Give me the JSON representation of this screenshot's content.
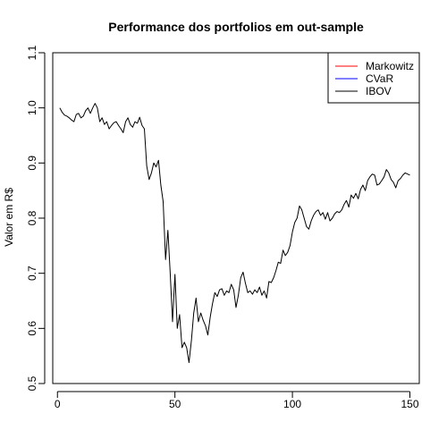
{
  "chart_data": {
    "type": "line",
    "title": "Performance dos portfolios em out-sample",
    "xlabel": "",
    "ylabel": "Valor em R$",
    "xlim": [
      -2,
      154
    ],
    "ylim": [
      0.5,
      1.1
    ],
    "x_ticks": [
      0,
      50,
      100,
      150
    ],
    "y_ticks": [
      0.5,
      0.6,
      0.7,
      0.8,
      0.9,
      1.0,
      1.1
    ],
    "x_tick_labels": [
      "0",
      "50",
      "100",
      "150"
    ],
    "y_tick_labels": [
      "0.5",
      "0.6",
      "0.7",
      "0.8",
      "0.9",
      "1.0",
      "1.1"
    ],
    "grid": false,
    "legend_position": "top-right",
    "legend": [
      {
        "name": "Markowitz",
        "color": "#ff0000"
      },
      {
        "name": "CVaR",
        "color": "#0000ff"
      },
      {
        "name": "IBOV",
        "color": "#000000"
      }
    ],
    "series": [
      {
        "name": "IBOV",
        "color": "#000000",
        "x": [
          1,
          2,
          3,
          4,
          5,
          6,
          7,
          8,
          9,
          10,
          11,
          12,
          13,
          14,
          15,
          16,
          17,
          18,
          19,
          20,
          21,
          22,
          23,
          24,
          25,
          26,
          27,
          28,
          29,
          30,
          31,
          32,
          33,
          34,
          35,
          36,
          37,
          38,
          39,
          40,
          41,
          42,
          43,
          44,
          45,
          46,
          47,
          48,
          49,
          50,
          51,
          52,
          53,
          54,
          55,
          56,
          57,
          58,
          59,
          60,
          61,
          62,
          63,
          64,
          65,
          66,
          67,
          68,
          69,
          70,
          71,
          72,
          73,
          74,
          75,
          76,
          77,
          78,
          79,
          80,
          81,
          82,
          83,
          84,
          85,
          86,
          87,
          88,
          89,
          90,
          91,
          92,
          93,
          94,
          95,
          96,
          97,
          98,
          99,
          100,
          101,
          102,
          103,
          104,
          105,
          106,
          107,
          108,
          109,
          110,
          111,
          112,
          113,
          114,
          115,
          116,
          117,
          118,
          119,
          120,
          121,
          122,
          123,
          124,
          125,
          126,
          127,
          128,
          129,
          130,
          131,
          132,
          133,
          134,
          135,
          136,
          137,
          138,
          139,
          140,
          141,
          142,
          143,
          144,
          145,
          146,
          147,
          148,
          149,
          150
        ],
        "values": [
          1.0,
          0.992,
          0.987,
          0.985,
          0.982,
          0.978,
          0.975,
          0.988,
          0.99,
          0.982,
          0.985,
          0.995,
          1.0,
          0.99,
          1.0,
          1.008,
          1.0,
          0.975,
          0.982,
          0.97,
          0.975,
          0.962,
          0.968,
          0.973,
          0.975,
          0.968,
          0.962,
          0.955,
          0.975,
          0.982,
          0.97,
          0.965,
          0.975,
          0.972,
          0.983,
          0.968,
          0.962,
          0.895,
          0.87,
          0.882,
          0.9,
          0.893,
          0.905,
          0.86,
          0.83,
          0.725,
          0.778,
          0.7,
          0.612,
          0.698,
          0.6,
          0.625,
          0.565,
          0.575,
          0.565,
          0.538,
          0.578,
          0.628,
          0.655,
          0.612,
          0.628,
          0.615,
          0.605,
          0.588,
          0.62,
          0.645,
          0.665,
          0.658,
          0.67,
          0.672,
          0.66,
          0.668,
          0.665,
          0.68,
          0.67,
          0.638,
          0.66,
          0.692,
          0.702,
          0.682,
          0.665,
          0.668,
          0.662,
          0.67,
          0.665,
          0.675,
          0.66,
          0.668,
          0.655,
          0.685,
          0.683,
          0.692,
          0.705,
          0.72,
          0.718,
          0.742,
          0.732,
          0.738,
          0.75,
          0.775,
          0.792,
          0.8,
          0.822,
          0.815,
          0.8,
          0.785,
          0.78,
          0.795,
          0.805,
          0.812,
          0.815,
          0.805,
          0.81,
          0.798,
          0.81,
          0.795,
          0.8,
          0.808,
          0.812,
          0.81,
          0.815,
          0.825,
          0.832,
          0.82,
          0.842,
          0.836,
          0.845,
          0.835,
          0.852,
          0.86,
          0.85,
          0.868,
          0.875,
          0.88,
          0.878,
          0.86,
          0.862,
          0.868,
          0.875,
          0.888,
          0.882,
          0.87,
          0.865,
          0.855,
          0.868,
          0.872,
          0.878,
          0.882,
          0.88,
          0.878
        ]
      }
    ]
  }
}
